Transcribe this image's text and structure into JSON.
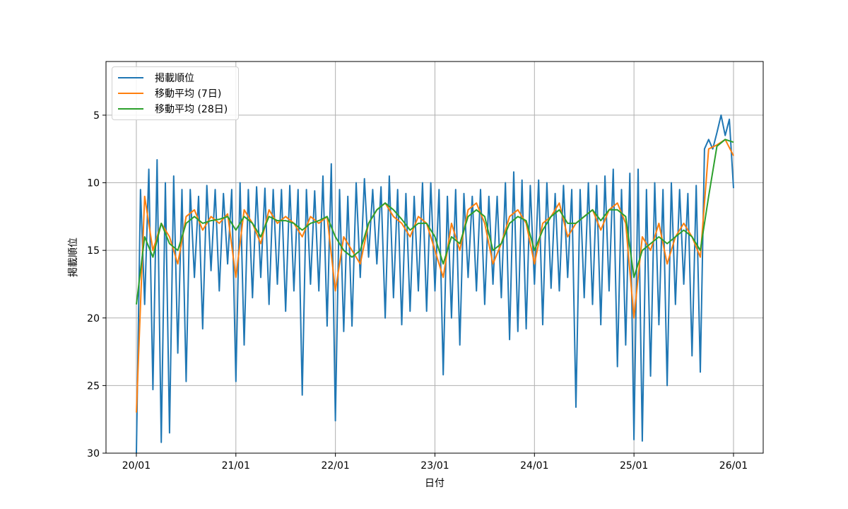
{
  "chart_data": {
    "type": "line",
    "title": "",
    "xlabel": "日付",
    "ylabel": "掲載順位",
    "x_unit": "months since 2020-01",
    "xlim": [
      -3.66,
      75.58
    ],
    "ylim": [
      30,
      1.03
    ],
    "y_inverted": true,
    "grid": true,
    "legend_position": "top-left",
    "xticks": [
      {
        "v": 0,
        "label": "20/01"
      },
      {
        "v": 12,
        "label": "21/01"
      },
      {
        "v": 24,
        "label": "22/01"
      },
      {
        "v": 36,
        "label": "23/01"
      },
      {
        "v": 48,
        "label": "24/01"
      },
      {
        "v": 60,
        "label": "25/01"
      },
      {
        "v": 72,
        "label": "26/01"
      }
    ],
    "yticks": [
      {
        "v": 5,
        "label": "5"
      },
      {
        "v": 10,
        "label": "10"
      },
      {
        "v": 15,
        "label": "15"
      },
      {
        "v": 20,
        "label": "20"
      },
      {
        "v": 25,
        "label": "25"
      },
      {
        "v": 30,
        "label": "30"
      }
    ],
    "series": [
      {
        "name": "掲載順位",
        "color": "#1f77b4",
        "x_step": 0.5,
        "values": [
          30,
          10.5,
          19,
          9,
          25.3,
          8.3,
          29.2,
          10,
          28.5,
          9.5,
          22.6,
          10.5,
          24.7,
          10.5,
          17,
          11,
          20.8,
          10.2,
          16.5,
          10.5,
          18,
          10.8,
          16,
          10.5,
          24.7,
          10,
          22,
          10.5,
          18.5,
          10.3,
          17,
          10.4,
          19,
          10.5,
          17.5,
          10.5,
          19.5,
          10.2,
          18,
          10.5,
          25.7,
          10.5,
          17.5,
          10.6,
          18,
          9.5,
          20.6,
          8.6,
          27.6,
          10.5,
          21,
          11,
          20.6,
          10,
          17,
          9.7,
          15.5,
          10.5,
          16,
          10.3,
          20,
          9.5,
          18.5,
          10.5,
          20.5,
          10.8,
          19.5,
          11,
          18,
          10,
          19.5,
          10,
          18,
          10.5,
          24.2,
          11,
          20,
          10.5,
          22,
          10.8,
          17,
          11,
          18,
          10.5,
          19,
          11,
          17.5,
          11,
          18.5,
          10,
          21.6,
          9.2,
          21,
          9.8,
          20.8,
          10.2,
          17.5,
          9.8,
          20.5,
          10,
          17.8,
          10.8,
          18,
          10.2,
          17,
          10.5,
          26.6,
          10.5,
          18.5,
          10,
          19,
          10.2,
          20.5,
          9.5,
          18,
          9,
          23.6,
          10.5,
          22,
          9.3,
          29,
          9,
          29.1,
          10.5,
          24.3,
          10,
          20.5,
          10.5,
          25,
          10,
          19,
          10.5,
          17.5,
          10.8,
          22.8,
          10.2,
          24,
          7.5,
          6.8,
          7.5,
          6.3,
          5.0,
          6.5,
          5.3,
          10.4
        ]
      },
      {
        "name": "移動平均 (7日)",
        "color": "#ff7f0e",
        "x_step": 1,
        "values": [
          27,
          11,
          15,
          13,
          14,
          16,
          12.5,
          12,
          13.5,
          12.5,
          13,
          12.3,
          17,
          12,
          13,
          14.5,
          12,
          13,
          12.5,
          13,
          14,
          12.5,
          13,
          12.5,
          18,
          14,
          15,
          16,
          13,
          12,
          11.5,
          12.5,
          13,
          14,
          12.5,
          13,
          15,
          17,
          13,
          15,
          12,
          11.5,
          13,
          16,
          14.5,
          12.5,
          12,
          13,
          16,
          13,
          12.5,
          11.5,
          14,
          13,
          12.5,
          12,
          13.5,
          12,
          11.5,
          13,
          20,
          14,
          15,
          13,
          16,
          14,
          13,
          14,
          15.5,
          7.5,
          7.2,
          6.8,
          8
        ]
      },
      {
        "name": "移動平均 (28日)",
        "color": "#2ca02c",
        "x_step": 1,
        "values": [
          19,
          14,
          15.5,
          13,
          14.5,
          15,
          13,
          12.5,
          13,
          12.8,
          12.7,
          12.5,
          13.5,
          12.5,
          13,
          14,
          12.5,
          12.8,
          12.8,
          13,
          13.5,
          13,
          12.8,
          12.5,
          14,
          15,
          15.5,
          15,
          13,
          12,
          11.5,
          12,
          12.7,
          13.5,
          13,
          13,
          14,
          16,
          14,
          14.5,
          12.5,
          12,
          12.5,
          15,
          14.5,
          13,
          12.5,
          12.8,
          15,
          13.5,
          12.5,
          12,
          13,
          13,
          12.5,
          12,
          12.8,
          12,
          12,
          12.5,
          17,
          15,
          14.5,
          14,
          14.5,
          14,
          13.5,
          14,
          15,
          11,
          7.3,
          6.8,
          7
        ]
      }
    ]
  }
}
